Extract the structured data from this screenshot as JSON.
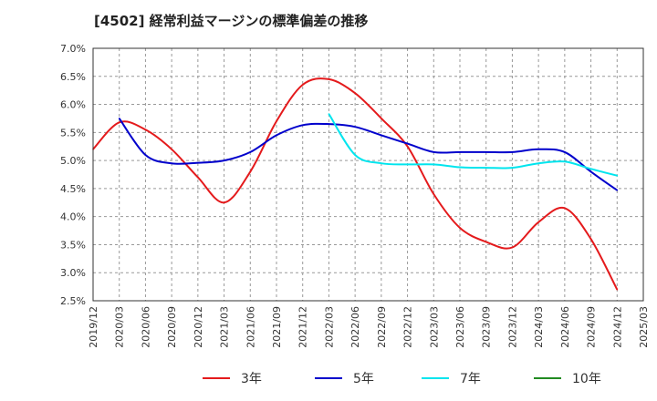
{
  "chart_data": {
    "type": "line",
    "title": "[4502]  経常利益マージンの標準偏差の推移",
    "xlabel": "",
    "ylabel": "",
    "ylim": [
      2.5,
      7.0
    ],
    "y_ticks": [
      "7.0%",
      "6.5%",
      "6.0%",
      "5.5%",
      "5.0%",
      "4.5%",
      "4.0%",
      "3.5%",
      "3.0%",
      "2.5%"
    ],
    "x_ticks": [
      "2019/12",
      "2020/03",
      "2020/06",
      "2020/09",
      "2020/12",
      "2021/03",
      "2021/06",
      "2021/09",
      "2021/12",
      "2022/03",
      "2022/06",
      "2022/09",
      "2022/12",
      "2023/03",
      "2023/06",
      "2023/09",
      "2023/12",
      "2024/03",
      "2024/06",
      "2024/09",
      "2024/12",
      "2025/03"
    ],
    "grid": true,
    "legend_position": "bottom",
    "series": [
      {
        "name": "3年",
        "color": "#e41a1c",
        "x": [
          "2019/12",
          "2020/03",
          "2020/06",
          "2020/09",
          "2020/12",
          "2021/03",
          "2021/06",
          "2021/09",
          "2021/12",
          "2022/03",
          "2022/06",
          "2022/09",
          "2022/12",
          "2023/03",
          "2023/06",
          "2023/09",
          "2023/12",
          "2024/03",
          "2024/06",
          "2024/09",
          "2024/12"
        ],
        "values": [
          5.2,
          5.68,
          5.55,
          5.2,
          4.7,
          4.25,
          4.8,
          5.7,
          6.35,
          6.45,
          6.2,
          5.75,
          5.25,
          4.4,
          3.8,
          3.55,
          3.45,
          3.9,
          4.15,
          3.6,
          2.7
        ]
      },
      {
        "name": "5年",
        "color": "#0000cc",
        "x": [
          "2020/03",
          "2020/06",
          "2020/09",
          "2020/12",
          "2021/03",
          "2021/06",
          "2021/09",
          "2021/12",
          "2022/03",
          "2022/06",
          "2022/09",
          "2022/12",
          "2023/03",
          "2023/06",
          "2023/09",
          "2023/12",
          "2024/03",
          "2024/06",
          "2024/09",
          "2024/12"
        ],
        "values": [
          5.75,
          5.1,
          4.95,
          4.96,
          5.0,
          5.15,
          5.45,
          5.63,
          5.65,
          5.6,
          5.45,
          5.3,
          5.15,
          5.15,
          5.15,
          5.15,
          5.2,
          5.15,
          4.8,
          4.47
        ]
      },
      {
        "name": "7年",
        "color": "#00e5ee",
        "x": [
          "2022/03",
          "2022/06",
          "2022/09",
          "2022/12",
          "2023/03",
          "2023/06",
          "2023/09",
          "2023/12",
          "2024/03",
          "2024/06",
          "2024/09",
          "2024/12"
        ],
        "values": [
          5.83,
          5.1,
          4.95,
          4.93,
          4.93,
          4.88,
          4.87,
          4.87,
          4.95,
          4.98,
          4.85,
          4.73
        ]
      },
      {
        "name": "10年",
        "color": "#228b22",
        "x": [],
        "values": []
      }
    ]
  }
}
